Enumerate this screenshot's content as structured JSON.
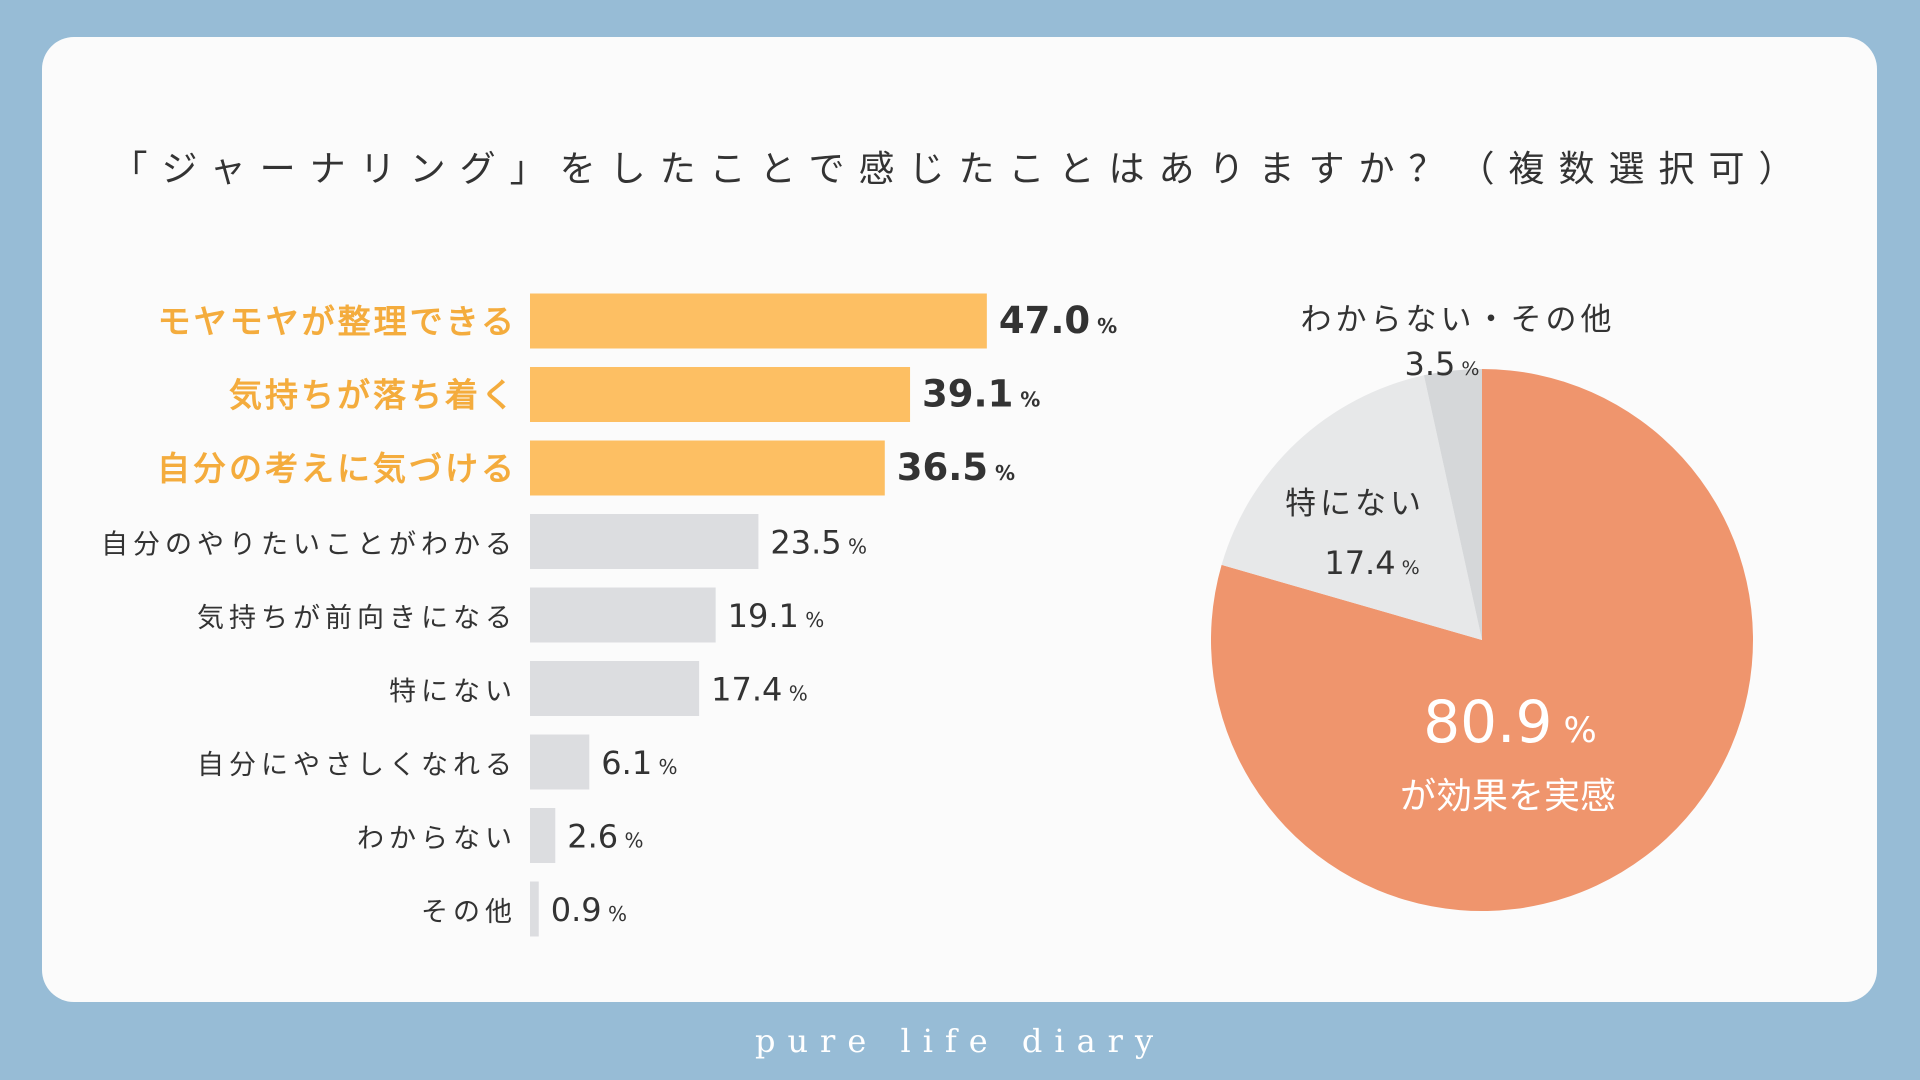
{
  "title": "「ジャーナリング」をしたことで感じたことはありますか？（複数選択可）",
  "footer": "pure life diary",
  "colors": {
    "highlight": "#fdbf63",
    "bar_default": "#dcdde0",
    "pie_main": "#ef956d",
    "pie_second": "#e7e8e9",
    "pie_third": "#d5d7d9",
    "highlight_text": "#f4ac3d",
    "text": "#333333"
  },
  "chart_data": [
    {
      "type": "bar",
      "orientation": "horizontal",
      "categories": [
        "モヤモヤが整理できる",
        "気持ちが落ち着く",
        "自分の考えに気づける",
        "自分のやりたいことがわかる",
        "気持ちが前向きになる",
        "特にない",
        "自分にやさしくなれる",
        "わからない",
        "その他"
      ],
      "values": [
        47.0,
        39.1,
        36.5,
        23.5,
        19.1,
        17.4,
        6.1,
        2.6,
        0.9
      ],
      "value_labels": [
        "47.0",
        "39.1",
        "36.5",
        "23.5",
        "19.1",
        "17.4",
        "6.1",
        "2.6",
        "0.9"
      ],
      "highlighted": [
        true,
        true,
        true,
        false,
        false,
        false,
        false,
        false,
        false
      ],
      "unit": "%"
    },
    {
      "type": "pie",
      "slices": [
        {
          "label": "が効果を実感",
          "value": 80.9,
          "value_label": "80.9"
        },
        {
          "label": "特にない",
          "value": 17.4,
          "value_label": "17.4"
        },
        {
          "label": "わからない・その他",
          "value": 3.5,
          "value_label": "3.5"
        }
      ],
      "unit": "%",
      "start": "top",
      "direction": "clockwise"
    }
  ]
}
